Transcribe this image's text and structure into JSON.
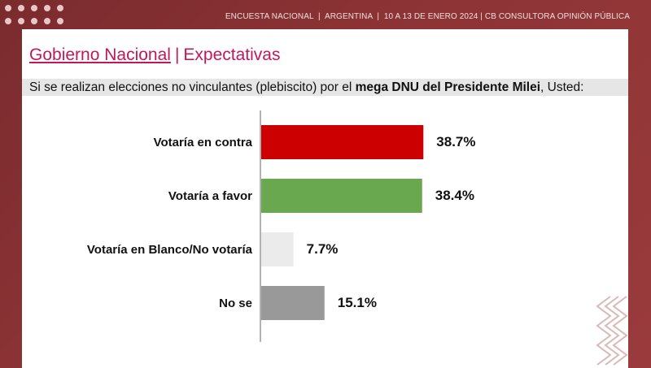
{
  "header": {
    "survey": "ENCUESTA NACIONAL",
    "country": "ARGENTINA",
    "dates": "10 A 13 DE ENERO 2024",
    "firm": "CB CONSULTORA OPINIÓN PÚBLICA"
  },
  "title": {
    "main": "Gobierno Nacional",
    "separator": "|",
    "sub": "Expectativas"
  },
  "question": {
    "before": "Si se realizan elecciones no vinculantes (plebiscito) por el ",
    "bold": "mega DNU del Presidente Milei",
    "after": ", Usted:"
  },
  "chart_data": {
    "type": "bar",
    "orientation": "horizontal",
    "categories": [
      "Votaría en contra",
      "Votaría a favor",
      "Votaría en Blanco/No votaría",
      "No se"
    ],
    "values": [
      38.7,
      38.4,
      7.7,
      15.1
    ],
    "value_labels": [
      "38.7%",
      "38.4%",
      "7.7%",
      "15.1%"
    ],
    "colors": [
      "#cc0000",
      "#6aa84f",
      "#ebebeb",
      "#999999"
    ],
    "xlim": [
      0,
      40
    ],
    "grid": false,
    "legend": "none"
  },
  "colors": {
    "background": "#8e3436",
    "title": "#c2185b"
  }
}
